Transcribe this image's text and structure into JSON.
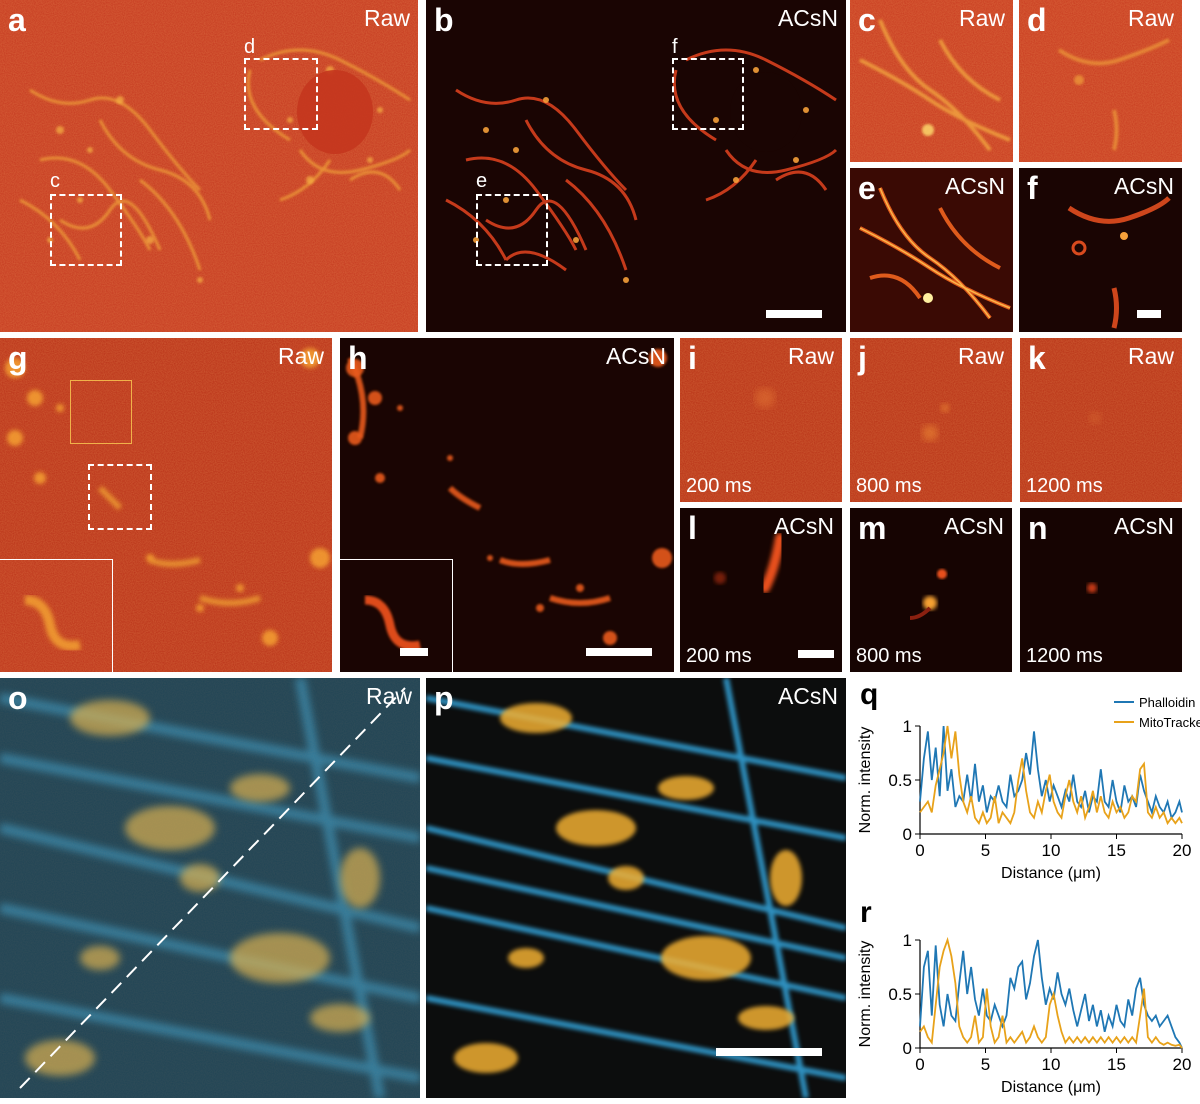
{
  "colors": {
    "raw_red": "#c8361c",
    "acsn_dark": "#1a0503",
    "structure_orange": "#f0a030",
    "phalloidin_blue": "#1f77b4",
    "mitotracker_yellow": "#e8a21a",
    "dual_blue": "#3aa6d8",
    "dual_yellow": "#f0b33a"
  },
  "panels": {
    "a": {
      "letter": "a",
      "tag": "Raw",
      "boxes": [
        "d",
        "c"
      ]
    },
    "b": {
      "letter": "b",
      "tag": "ACsN",
      "boxes": [
        "f",
        "e"
      ]
    },
    "c": {
      "letter": "c",
      "tag": "Raw"
    },
    "d": {
      "letter": "d",
      "tag": "Raw"
    },
    "e": {
      "letter": "e",
      "tag": "ACsN"
    },
    "f": {
      "letter": "f",
      "tag": "ACsN"
    },
    "g": {
      "letter": "g",
      "tag": "Raw"
    },
    "h": {
      "letter": "h",
      "tag": "ACsN"
    },
    "i": {
      "letter": "i",
      "tag": "Raw",
      "time": "200 ms"
    },
    "j": {
      "letter": "j",
      "tag": "Raw",
      "time": "800 ms"
    },
    "k": {
      "letter": "k",
      "tag": "Raw",
      "time": "1200 ms"
    },
    "l": {
      "letter": "l",
      "tag": "ACsN",
      "time": "200 ms"
    },
    "m": {
      "letter": "m",
      "tag": "ACsN",
      "time": "800 ms"
    },
    "n": {
      "letter": "n",
      "tag": "ACsN",
      "time": "1200 ms"
    },
    "o": {
      "letter": "o",
      "tag": "Raw"
    },
    "p": {
      "letter": "p",
      "tag": "ACsN"
    }
  },
  "chart_data": [
    {
      "letter": "q",
      "type": "line",
      "xlabel": "Distance (μm)",
      "ylabel": "Norm. intensity",
      "xlim": [
        0,
        20
      ],
      "ylim": [
        0,
        1
      ],
      "xticks": [
        "0",
        "5",
        "10",
        "15",
        "20"
      ],
      "yticks": [
        "0",
        "0.5",
        "1"
      ],
      "legend_position": "top-right",
      "series": [
        {
          "name": "Phalloidin",
          "color": "#1f77b4",
          "x": [
            0,
            0.3,
            0.6,
            0.9,
            1.2,
            1.5,
            1.8,
            2.1,
            2.4,
            2.7,
            3,
            3.3,
            3.6,
            3.9,
            4.2,
            4.5,
            4.8,
            5.1,
            5.4,
            5.7,
            6,
            6.3,
            6.6,
            6.9,
            7.2,
            7.5,
            7.8,
            8.1,
            8.4,
            8.7,
            9,
            9.3,
            9.6,
            9.9,
            10.2,
            10.5,
            10.8,
            11.1,
            11.4,
            11.7,
            12,
            12.3,
            12.6,
            12.9,
            13.2,
            13.5,
            13.8,
            14.1,
            14.4,
            14.7,
            15,
            15.3,
            15.6,
            15.9,
            16.2,
            16.5,
            16.8,
            17.1,
            17.4,
            17.7,
            18,
            18.3,
            18.6,
            18.9,
            19.2,
            19.5,
            19.8,
            20
          ],
          "y": [
            0.3,
            0.7,
            0.95,
            0.5,
            0.8,
            0.35,
            1.0,
            0.4,
            0.6,
            0.25,
            0.35,
            0.3,
            0.55,
            0.3,
            0.65,
            0.3,
            0.45,
            0.2,
            0.35,
            0.3,
            0.45,
            0.3,
            0.25,
            0.55,
            0.35,
            0.4,
            0.5,
            0.75,
            0.55,
            0.95,
            0.6,
            0.35,
            0.5,
            0.3,
            0.45,
            0.35,
            0.25,
            0.4,
            0.3,
            0.55,
            0.3,
            0.25,
            0.4,
            0.2,
            0.35,
            0.3,
            0.6,
            0.3,
            0.25,
            0.5,
            0.3,
            0.2,
            0.45,
            0.3,
            0.35,
            0.25,
            0.55,
            0.4,
            0.3,
            0.2,
            0.35,
            0.25,
            0.2,
            0.3,
            0.15,
            0.2,
            0.3,
            0.2
          ]
        },
        {
          "name": "MitoTracker",
          "color": "#e8a21a",
          "x": [
            0,
            0.3,
            0.6,
            0.9,
            1.2,
            1.5,
            1.8,
            2.1,
            2.4,
            2.7,
            3,
            3.3,
            3.6,
            3.9,
            4.2,
            4.5,
            4.8,
            5.1,
            5.4,
            5.7,
            6,
            6.3,
            6.6,
            6.9,
            7.2,
            7.5,
            7.8,
            8.1,
            8.4,
            8.7,
            9,
            9.3,
            9.6,
            9.9,
            10.2,
            10.5,
            10.8,
            11.1,
            11.4,
            11.7,
            12,
            12.3,
            12.6,
            12.9,
            13.2,
            13.5,
            13.8,
            14.1,
            14.4,
            14.7,
            15,
            15.3,
            15.6,
            15.9,
            16.2,
            16.5,
            16.8,
            17.1,
            17.4,
            17.7,
            18,
            18.3,
            18.6,
            18.9,
            19.2,
            19.5,
            19.8,
            20
          ],
          "y": [
            0.2,
            0.25,
            0.3,
            0.2,
            0.45,
            0.6,
            0.75,
            1.0,
            0.7,
            0.95,
            0.55,
            0.3,
            0.2,
            0.35,
            0.15,
            0.1,
            0.2,
            0.1,
            0.15,
            0.35,
            0.1,
            0.2,
            0.15,
            0.1,
            0.2,
            0.5,
            0.7,
            0.4,
            0.2,
            0.15,
            0.3,
            0.2,
            0.4,
            0.55,
            0.3,
            0.2,
            0.15,
            0.35,
            0.5,
            0.3,
            0.2,
            0.35,
            0.15,
            0.25,
            0.4,
            0.2,
            0.35,
            0.2,
            0.15,
            0.3,
            0.2,
            0.25,
            0.15,
            0.2,
            0.35,
            0.3,
            0.6,
            0.65,
            0.2,
            0.15,
            0.25,
            0.15,
            0.2,
            0.1,
            0.15,
            0.1,
            0.15,
            0.1
          ]
        }
      ]
    },
    {
      "letter": "r",
      "type": "line",
      "xlabel": "Distance (μm)",
      "ylabel": "Norm. intensity",
      "xlim": [
        0,
        20
      ],
      "ylim": [
        0,
        1
      ],
      "xticks": [
        "0",
        "5",
        "10",
        "15",
        "20"
      ],
      "yticks": [
        "0",
        "0.5",
        "1"
      ],
      "series": [
        {
          "name": "Phalloidin",
          "color": "#1f77b4",
          "x": [
            0,
            0.3,
            0.6,
            0.9,
            1.2,
            1.5,
            1.8,
            2.1,
            2.4,
            2.7,
            3,
            3.3,
            3.6,
            3.9,
            4.2,
            4.5,
            4.8,
            5.1,
            5.4,
            5.7,
            6,
            6.3,
            6.6,
            6.9,
            7.2,
            7.5,
            7.8,
            8.1,
            8.4,
            8.7,
            9,
            9.3,
            9.6,
            9.9,
            10.2,
            10.5,
            10.8,
            11.1,
            11.4,
            11.7,
            12,
            12.3,
            12.6,
            12.9,
            13.2,
            13.5,
            13.8,
            14.1,
            14.4,
            14.7,
            15,
            15.3,
            15.6,
            15.9,
            16.2,
            16.5,
            16.8,
            17.1,
            17.4,
            17.7,
            18,
            18.3,
            18.6,
            18.9,
            19.2,
            19.5,
            19.8,
            20
          ],
          "y": [
            0.2,
            0.75,
            0.9,
            0.3,
            0.95,
            0.4,
            0.2,
            0.5,
            0.3,
            0.25,
            0.6,
            0.9,
            0.5,
            0.75,
            0.45,
            0.3,
            0.55,
            0.3,
            0.25,
            0.4,
            0.3,
            0.2,
            0.3,
            0.65,
            0.55,
            0.75,
            0.8,
            0.45,
            0.6,
            0.85,
            1.0,
            0.65,
            0.4,
            0.55,
            0.45,
            0.7,
            0.5,
            0.4,
            0.55,
            0.35,
            0.2,
            0.35,
            0.5,
            0.25,
            0.4,
            0.2,
            0.35,
            0.15,
            0.3,
            0.2,
            0.4,
            0.25,
            0.2,
            0.45,
            0.3,
            0.55,
            0.65,
            0.4,
            0.3,
            0.25,
            0.3,
            0.2,
            0.25,
            0.3,
            0.2,
            0.1,
            0.05,
            0.0
          ]
        },
        {
          "name": "MitoTracker",
          "color": "#e8a21a",
          "x": [
            0,
            0.3,
            0.6,
            0.9,
            1.2,
            1.5,
            1.8,
            2.1,
            2.4,
            2.7,
            3,
            3.3,
            3.6,
            3.9,
            4.2,
            4.5,
            4.8,
            5.1,
            5.4,
            5.7,
            6,
            6.3,
            6.6,
            6.9,
            7.2,
            7.5,
            7.8,
            8.1,
            8.4,
            8.7,
            9,
            9.3,
            9.6,
            9.9,
            10.2,
            10.5,
            10.8,
            11.1,
            11.4,
            11.7,
            12,
            12.3,
            12.6,
            12.9,
            13.2,
            13.5,
            13.8,
            14.1,
            14.4,
            14.7,
            15,
            15.3,
            15.6,
            15.9,
            16.2,
            16.5,
            16.8,
            17.1,
            17.4,
            17.7,
            18,
            18.3,
            18.6,
            18.9,
            19.2,
            19.5,
            19.8,
            20
          ],
          "y": [
            0.15,
            0.2,
            0.1,
            0.05,
            0.4,
            0.75,
            0.9,
            1.0,
            0.85,
            0.6,
            0.2,
            0.1,
            0.05,
            0.1,
            0.3,
            0.05,
            0.1,
            0.55,
            0.2,
            0.05,
            0.1,
            0.3,
            0.05,
            0.1,
            0.05,
            0.1,
            0.15,
            0.05,
            0.1,
            0.2,
            0.1,
            0.05,
            0.1,
            0.4,
            0.5,
            0.3,
            0.15,
            0.05,
            0.1,
            0.05,
            0.1,
            0.05,
            0.1,
            0.05,
            0.1,
            0.05,
            0.1,
            0.05,
            0.1,
            0.05,
            0.1,
            0.05,
            0.1,
            0.05,
            0.1,
            0.05,
            0.3,
            0.55,
            0.1,
            0.05,
            0.1,
            0.05,
            0.03,
            0.05,
            0.03,
            0.02,
            0.03,
            0.0
          ]
        }
      ]
    }
  ]
}
